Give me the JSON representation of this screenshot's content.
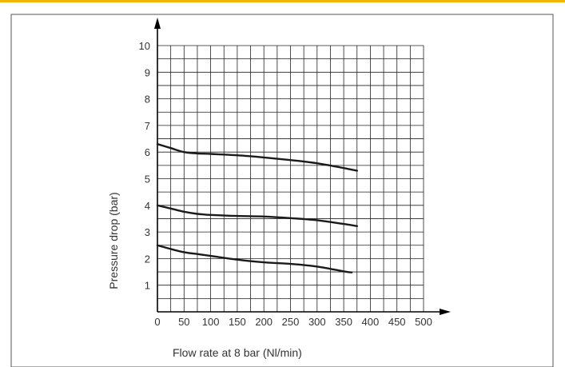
{
  "colors": {
    "accent_border": "#F2B705",
    "frame_border": "#555555",
    "grid": "#222222",
    "curve": "#1a1a1a",
    "text": "#333333"
  },
  "chart_data": {
    "type": "line",
    "title": "",
    "xlabel": "Flow rate at 8 bar (Nl/min)",
    "ylabel": "Pressure drop (bar)",
    "xlim": [
      0,
      500
    ],
    "ylim": [
      0,
      10
    ],
    "x_ticks": [
      0,
      50,
      100,
      150,
      200,
      250,
      300,
      350,
      400,
      450,
      500
    ],
    "y_ticks": [
      1,
      2,
      3,
      4,
      5,
      6,
      7,
      8,
      9,
      10
    ],
    "x_tick_labels": [
      "0",
      "50",
      "100",
      "150",
      "200",
      "250",
      "300",
      "350",
      "400",
      "450",
      "500"
    ],
    "y_tick_labels": [
      "1",
      "2",
      "3",
      "4",
      "5",
      "6",
      "7",
      "8",
      "9",
      "10"
    ],
    "grid": true,
    "grid_minor_x_step": 25,
    "grid_minor_y_step": 0.5,
    "series": [
      {
        "x": [
          0,
          25,
          50,
          75,
          100,
          150,
          200,
          250,
          300,
          350,
          375
        ],
        "y": [
          6.3,
          6.15,
          6.0,
          5.95,
          5.93,
          5.88,
          5.8,
          5.7,
          5.58,
          5.4,
          5.3
        ]
      },
      {
        "x": [
          0,
          25,
          50,
          75,
          100,
          150,
          200,
          250,
          300,
          350,
          375
        ],
        "y": [
          4.0,
          3.88,
          3.76,
          3.68,
          3.64,
          3.6,
          3.58,
          3.52,
          3.44,
          3.3,
          3.22
        ]
      },
      {
        "x": [
          0,
          25,
          50,
          75,
          100,
          150,
          200,
          250,
          300,
          350,
          365
        ],
        "y": [
          2.5,
          2.36,
          2.24,
          2.17,
          2.1,
          1.96,
          1.86,
          1.8,
          1.7,
          1.52,
          1.48
        ]
      }
    ]
  }
}
